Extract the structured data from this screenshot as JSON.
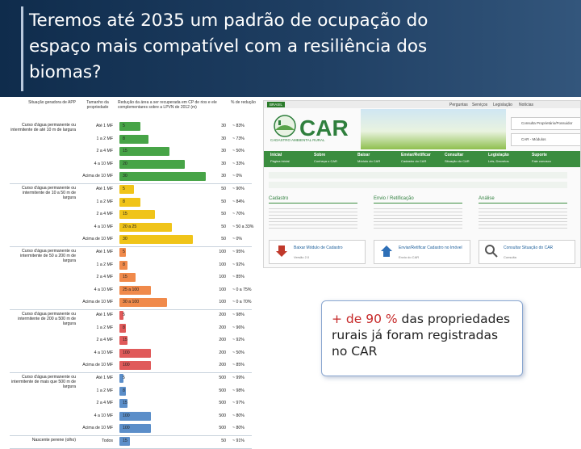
{
  "slide": {
    "title": "Teremos até 2035 um padrão de ocupação do espaço mais compatível com a resiliência dos biomas?",
    "callout": {
      "highlight": "+ de 90 %",
      "rest": " das propriedades rurais já foram registradas no CAR"
    }
  },
  "table": {
    "headers": [
      "Situação geradora de APP",
      "Tamanho da propriedade",
      "Redução da área a ser recuperada em CP de rios e ele complementares sobre a LPVN de 2012 (m)",
      "% de redução"
    ],
    "groups": [
      {
        "label": "Curso d'água permanente ou intermitente de até 10 m de largura",
        "color": "#47a447",
        "rows": [
          {
            "prop": "Até 1 MF",
            "val": "5",
            "apv": "30",
            "pct": "~ 83%",
            "w": 0.2
          },
          {
            "prop": "1 a 2 MF",
            "val": "8",
            "apv": "30",
            "pct": "~ 73%",
            "w": 0.28
          },
          {
            "prop": "2 a 4 MF",
            "val": "15",
            "apv": "30",
            "pct": "~ 50%",
            "w": 0.48
          },
          {
            "prop": "4 a 10 MF",
            "val": "20",
            "apv": "30",
            "pct": "~ 33%",
            "w": 0.62
          },
          {
            "prop": "Acima de 10 MF",
            "val": "30",
            "apv": "30",
            "pct": "~ 0%",
            "w": 0.82
          }
        ]
      },
      {
        "label": "Curso d'água permanente ou intermitente de 10 a 50 m de largura",
        "color": "#f0c419",
        "rows": [
          {
            "prop": "Até 1 MF",
            "val": "5",
            "apv": "50",
            "pct": "~ 90%",
            "w": 0.14
          },
          {
            "prop": "1 a 2 MF",
            "val": "8",
            "apv": "50",
            "pct": "~ 84%",
            "w": 0.2
          },
          {
            "prop": "2 a 4 MF",
            "val": "15",
            "apv": "50",
            "pct": "~ 70%",
            "w": 0.34
          },
          {
            "prop": "4 a 10 MF",
            "val": "20 a 25",
            "apv": "50",
            "pct": "~ 50 a 33%",
            "w": 0.5
          },
          {
            "prop": "Acima de 10 MF",
            "val": "30",
            "apv": "50",
            "pct": "~ 0%",
            "w": 0.7
          }
        ]
      },
      {
        "label": "Curso d'água permanente ou intermitente de 50 a 200 m de largura",
        "color": "#f08a4b",
        "rows": [
          {
            "prop": "Até 1 MF",
            "val": "5",
            "apv": "100",
            "pct": "~ 95%",
            "w": 0.06
          },
          {
            "prop": "1 a 2 MF",
            "val": "8",
            "apv": "100",
            "pct": "~ 92%",
            "w": 0.08
          },
          {
            "prop": "2 a 4 MF",
            "val": "15",
            "apv": "100",
            "pct": "~ 85%",
            "w": 0.15
          },
          {
            "prop": "4 a 10 MF",
            "val": "25 a 100",
            "apv": "100",
            "pct": "~ 0 a 75%",
            "w": 0.3
          },
          {
            "prop": "Acima de 10 MF",
            "val": "30 a 100",
            "apv": "100",
            "pct": "~ 0 a 70%",
            "w": 0.45
          }
        ]
      },
      {
        "label": "Curso d'água permanente ou intermitente de 200 a 500 m de largura",
        "color": "#e05a5a",
        "rows": [
          {
            "prop": "Até 1 MF",
            "val": "5",
            "apv": "200",
            "pct": "~ 98%",
            "w": 0.04
          },
          {
            "prop": "1 a 2 MF",
            "val": "8",
            "apv": "200",
            "pct": "~ 96%",
            "w": 0.06
          },
          {
            "prop": "2 a 4 MF",
            "val": "15",
            "apv": "200",
            "pct": "~ 92%",
            "w": 0.08
          },
          {
            "prop": "4 a 10 MF",
            "val": "100",
            "apv": "200",
            "pct": "~ 50%",
            "w": 0.3
          },
          {
            "prop": "Acima de 10 MF",
            "val": "100",
            "apv": "200",
            "pct": "~ 85%",
            "w": 0.3
          }
        ]
      },
      {
        "label": "Curso d'água permanente ou intermitente de mais que 500 m de largura",
        "color": "#5b8ec9",
        "rows": [
          {
            "prop": "Até 1 MF",
            "val": "5",
            "apv": "500",
            "pct": "~ 99%",
            "w": 0.04
          },
          {
            "prop": "1 a 2 MF",
            "val": "8",
            "apv": "500",
            "pct": "~ 98%",
            "w": 0.06
          },
          {
            "prop": "2 a 4 MF",
            "val": "15",
            "apv": "500",
            "pct": "~ 97%",
            "w": 0.08
          },
          {
            "prop": "4 a 10 MF",
            "val": "100",
            "apv": "500",
            "pct": "~ 80%",
            "w": 0.3
          },
          {
            "prop": "Acima de 10 MF",
            "val": "100",
            "apv": "500",
            "pct": "~ 80%",
            "w": 0.3
          }
        ]
      },
      {
        "label": "Nascente perene (olho)",
        "color": "#5b8ec9",
        "rows": [
          {
            "prop": "Todos",
            "val": "15",
            "apv": "50",
            "pct": "~ 91%",
            "w": 0.1
          }
        ]
      }
    ]
  },
  "car_site": {
    "gov_label": "BRASIL",
    "brand": "CAR",
    "brand_sub": "CADASTRO AMBIENTAL RURAL",
    "top_links": [
      "Perguntas",
      "Serviços",
      "Legislação",
      "Notícias"
    ],
    "sidebar_boxes": [
      "Consulta Proprietário/Possuidor",
      "CAR - Módulos"
    ],
    "nav": [
      {
        "label": "Inicial",
        "sub": "Página inicial"
      },
      {
        "label": "Sobre",
        "sub": "Conheça o CAR"
      },
      {
        "label": "Baixar",
        "sub": "Módulo do CAR"
      },
      {
        "label": "Enviar/Retificar",
        "sub": "Cadastro do CAR"
      },
      {
        "label": "Consultar",
        "sub": "Situação do CAR"
      },
      {
        "label": "Legislação",
        "sub": "Leis, Decretos"
      },
      {
        "label": "Suporte",
        "sub": "Fale conosco"
      }
    ],
    "columns": [
      "Cadastro",
      "Envio / Retificação",
      "Análise"
    ],
    "buttons": [
      {
        "title": "Baixar Módulo de Cadastro",
        "sub": "Versão 2.0"
      },
      {
        "title": "Enviar/Retificar Cadastro no Imóvel",
        "sub": "Envio do CAR"
      },
      {
        "title": "Consultar Situação do CAR",
        "sub": "Consulta"
      }
    ]
  }
}
